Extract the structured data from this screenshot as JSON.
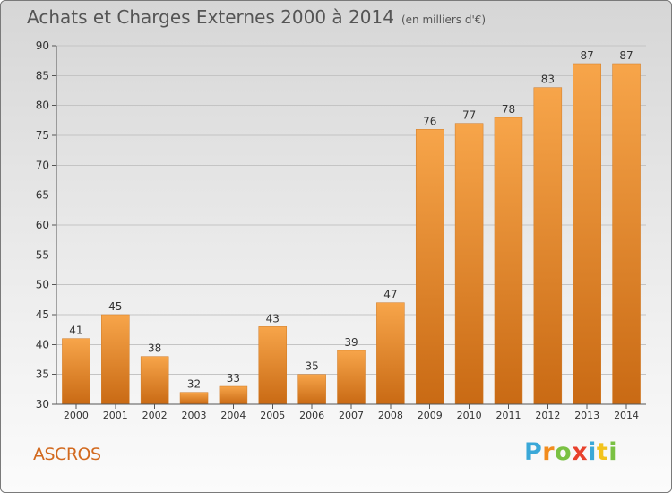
{
  "chart_data": {
    "type": "bar",
    "title": "Achats et Charges Externes 2000 à 2014",
    "subtitle": "(en milliers d'€)",
    "categories": [
      "2000",
      "2001",
      "2002",
      "2003",
      "2004",
      "2005",
      "2006",
      "2007",
      "2008",
      "2009",
      "2010",
      "2011",
      "2012",
      "2013",
      "2014"
    ],
    "values": [
      41,
      45,
      38,
      32,
      33,
      43,
      35,
      39,
      47,
      76,
      77,
      78,
      83,
      87,
      87
    ],
    "ylim": [
      30,
      90
    ],
    "yticks": [
      30,
      35,
      40,
      45,
      50,
      55,
      60,
      65,
      70,
      75,
      80,
      85,
      90
    ],
    "grid": true,
    "bar_color": "#f0902f"
  },
  "footer": {
    "commune": "ASCROS",
    "logo": "Proxiti",
    "logo_colors": [
      "#3aa8d8",
      "#f28c1e",
      "#7ac143",
      "#e8412c",
      "#3aa8d8",
      "#f2c31e",
      "#7ac143"
    ]
  }
}
